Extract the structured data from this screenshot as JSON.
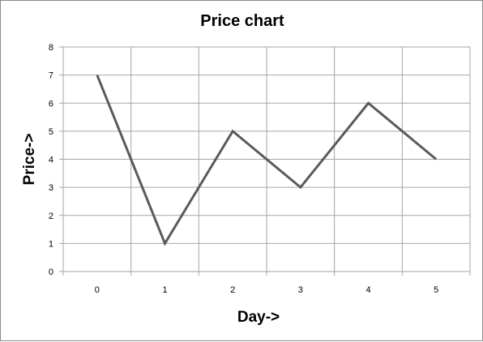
{
  "chart_data": {
    "type": "line",
    "title": "Price chart",
    "xlabel": "Day->",
    "ylabel": "Price->",
    "x": [
      0,
      1,
      2,
      3,
      4,
      5
    ],
    "categories": [
      "0",
      "1",
      "2",
      "3",
      "4",
      "5"
    ],
    "series": [
      {
        "values": [
          7,
          1,
          5,
          3,
          6,
          4
        ],
        "color": "#5a5a5a"
      }
    ],
    "ylim": [
      0,
      8
    ],
    "yticks": [
      "0",
      "1",
      "2",
      "3",
      "4",
      "5",
      "6",
      "7",
      "8"
    ],
    "grid": true,
    "legend": "none",
    "grid_color": "#a6a6a6"
  }
}
